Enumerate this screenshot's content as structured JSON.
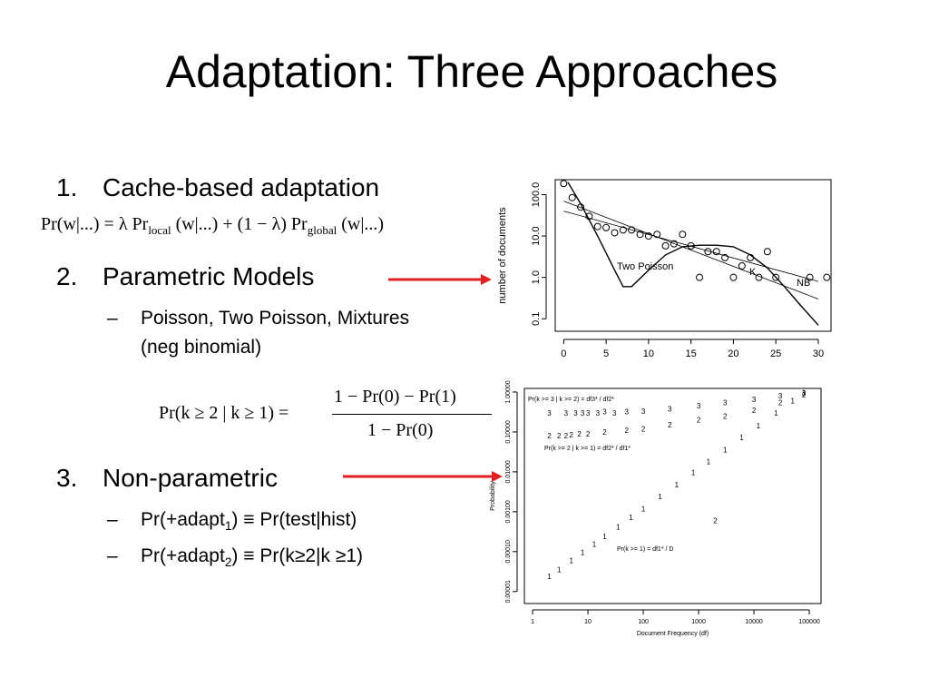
{
  "title": "Adaptation: Three Approaches",
  "bullet_marker": "–",
  "sections": [
    {
      "number": "1.",
      "heading": "Cache-based adaptation"
    },
    {
      "number": "2.",
      "heading": "Parametric Models",
      "bullets": [
        {
          "parts": [
            "Poisson, Two Poisson, Mixtures (neg binomial)"
          ]
        }
      ]
    },
    {
      "number": "3.",
      "heading": "Non-parametric",
      "bullets": [
        {
          "parts": [
            "Pr(+adapt",
            "1",
            ") ≡ Pr(test|hist)"
          ]
        },
        {
          "parts": [
            "Pr(+adapt",
            "2",
            ") ≡ Pr(k≥2|k ≥1)"
          ]
        }
      ]
    }
  ],
  "formula_1": [
    "Pr(w|...) = λ Pr",
    "local",
    " (w|...) + (1 − λ) Pr",
    "global",
    " (w|...)"
  ],
  "formula_2": {
    "lhs": "Pr(k ≥ 2 | k ≥ 1) =",
    "numerator": "1 − Pr(0) − Pr(1)",
    "denominator": "1 − Pr(0)"
  },
  "chart_data": [
    {
      "type": "scatter",
      "ylabel": "number of documents",
      "log_y": true,
      "xlim": [
        -1,
        31.5
      ],
      "ylim": [
        0.05,
        230
      ],
      "xticks": [
        0,
        5,
        10,
        15,
        20,
        25,
        30
      ],
      "yticks": [
        0.1,
        {
          "value": 1,
          "label": "1.0"
        },
        {
          "value": 10,
          "label": "10.0"
        },
        {
          "value": 100,
          "label": "100.0"
        }
      ],
      "color": "#000000",
      "points": {
        "x": [
          0,
          1,
          2,
          3,
          4,
          5,
          6,
          7,
          8,
          9,
          10,
          11,
          12,
          13,
          14,
          15,
          16,
          17,
          18,
          19,
          20,
          21,
          22,
          23,
          24,
          25,
          29,
          31
        ],
        "values": [
          185,
          85,
          50,
          30,
          17,
          16,
          12,
          14,
          14,
          11,
          10,
          11,
          5.8,
          6.5,
          11,
          5.8,
          1,
          4.2,
          4.2,
          3,
          1,
          1.9,
          3,
          1,
          4.2,
          1,
          1,
          1
        ]
      },
      "lines": [
        {
          "name": "Two Poisson",
          "x": [
            0.5,
            2,
            4,
            6,
            7,
            8,
            10,
            12,
            14,
            16,
            18,
            20,
            22,
            24,
            26,
            28,
            30
          ],
          "values": [
            200,
            60,
            10,
            1.5,
            0.6,
            0.6,
            1.5,
            3.5,
            5.5,
            6,
            6,
            5.5,
            3.5,
            1.7,
            0.6,
            0.2,
            0.07
          ]
        },
        {
          "name": "K",
          "x": [
            0,
            30
          ],
          "values": [
            40,
            0.8
          ]
        },
        {
          "name": "NB",
          "x": [
            0,
            30
          ],
          "values": [
            70,
            0.3
          ]
        }
      ]
    },
    {
      "type": "scatter",
      "xlabel": "Document Frequency (df)",
      "ylabel": "Probability",
      "log_x": true,
      "log_y": true,
      "xlim": [
        0.71,
        163000
      ],
      "ylim": [
        5e-06,
        1.23
      ],
      "xticks": [
        1,
        10,
        100,
        1000,
        10000,
        100000
      ],
      "yticks": [
        {
          "value": 1e-05,
          "label": "0.00001"
        },
        {
          "value": 0.0001,
          "label": "0.00010"
        },
        {
          "value": 0.001,
          "label": "0.00100"
        },
        {
          "value": 0.01,
          "label": "0.01000"
        },
        {
          "value": 0.1,
          "label": "0.10000"
        },
        {
          "value": 1,
          "label": "1.00000"
        }
      ],
      "annotations": [
        "Pr(k >= 3 | k >= 2) = df3* / df2*",
        "Pr(k >= 2 | k >= 1) = df2* / df1*",
        "Pr(k >= 1) = df1* / D"
      ],
      "series": [
        {
          "name": "1",
          "color": "#000000",
          "x": [
            2,
            3,
            5,
            8,
            13,
            20,
            35,
            60,
            100,
            200,
            400,
            800,
            1500,
            3000,
            6000,
            12000,
            25000,
            50000,
            80000
          ],
          "values": [
            2.4e-05,
            3.6e-05,
            6e-05,
            9.6e-05,
            0.000156,
            0.00024,
            0.00042,
            0.00072,
            0.0012,
            0.0024,
            0.0048,
            0.0096,
            0.018,
            0.036,
            0.072,
            0.144,
            0.3,
            0.6,
            0.96
          ]
        },
        {
          "name": "2",
          "color": "#000000",
          "x": [
            2,
            3,
            4,
            5,
            7,
            10,
            20,
            50,
            100,
            300,
            1000,
            2000,
            3000,
            10000,
            30000,
            80000
          ],
          "values": [
            0.08,
            0.08,
            0.08,
            0.085,
            0.09,
            0.09,
            0.1,
            0.11,
            0.12,
            0.15,
            0.2,
            0.0006,
            0.25,
            0.35,
            0.55,
            0.85
          ]
        },
        {
          "name": "3",
          "color": "#000000",
          "x": [
            2,
            4,
            6,
            8,
            10,
            15,
            20,
            30,
            50,
            100,
            300,
            1000,
            3000,
            10000,
            30000,
            80000
          ],
          "values": [
            0.3,
            0.3,
            0.3,
            0.3,
            0.3,
            0.3,
            0.32,
            0.3,
            0.32,
            0.33,
            0.38,
            0.45,
            0.55,
            0.65,
            0.8,
            0.95
          ]
        }
      ]
    }
  ]
}
